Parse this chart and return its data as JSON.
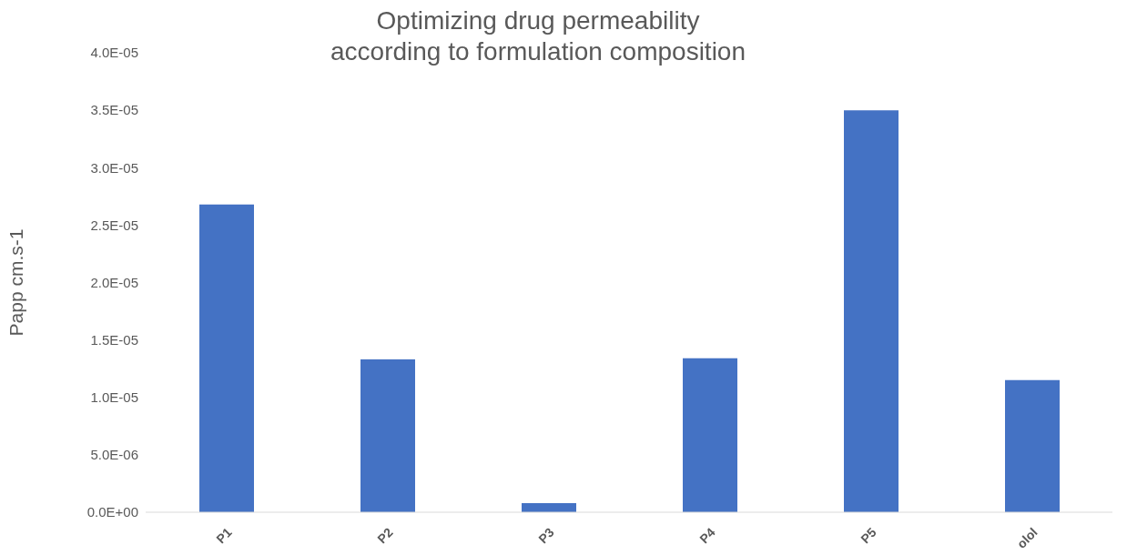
{
  "chart_data": {
    "type": "bar",
    "title": "Optimizing drug permeability\naccording to formulation composition",
    "ylabel": "Papp cm.s-1",
    "categories": [
      "P1",
      "P2",
      "P3",
      "P4",
      "P5",
      "olol"
    ],
    "values": [
      2.68e-05,
      1.33e-05,
      8e-07,
      1.34e-05,
      3.5e-05,
      1.15e-05
    ],
    "color": "#4472c4",
    "ylim": [
      0,
      4e-05
    ],
    "yticks": [
      {
        "value": 0,
        "label": "0.0E+00"
      },
      {
        "value": 5e-06,
        "label": "5.0E-06"
      },
      {
        "value": 1e-05,
        "label": "1.0E-05"
      },
      {
        "value": 1.5e-05,
        "label": "1.5E-05"
      },
      {
        "value": 2e-05,
        "label": "2.0E-05"
      },
      {
        "value": 2.5e-05,
        "label": "2.5E-05"
      },
      {
        "value": 3e-05,
        "label": "3.0E-05"
      },
      {
        "value": 3.5e-05,
        "label": "3.5E-05"
      },
      {
        "value": 4e-05,
        "label": "4.0E-05"
      }
    ],
    "grid": false,
    "legend": false
  }
}
